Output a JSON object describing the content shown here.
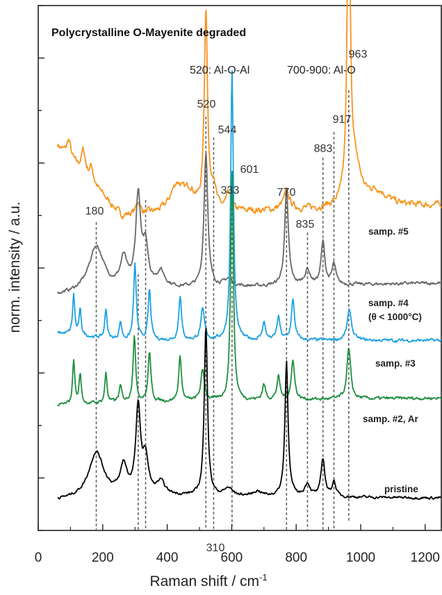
{
  "chart_data": {
    "type": "line",
    "title": "Polycrystalline O-Mayenite degraded",
    "xlabel": "Raman shift / cm",
    "xlabel_superscript": "-1",
    "ylabel": "norm. intensity / a.u.",
    "xlim": [
      0,
      1250
    ],
    "x_ticks": [
      0,
      200,
      400,
      600,
      800,
      1000,
      1200
    ],
    "y_tick_labels_shown": false,
    "grid": false,
    "legend": "inline labels at right",
    "annotations": [
      "520: Al-O-Al",
      "700-900: Al-O"
    ],
    "peak_markers": [
      {
        "x": 180,
        "label": "180"
      },
      {
        "x": 310,
        "label": "310"
      },
      {
        "x": 333,
        "label": "333"
      },
      {
        "x": 520,
        "label": "520"
      },
      {
        "x": 544,
        "label": "544"
      },
      {
        "x": 601,
        "label": "601"
      },
      {
        "x": 770,
        "label": "770"
      },
      {
        "x": 835,
        "label": "835"
      },
      {
        "x": 883,
        "label": "883"
      },
      {
        "x": 917,
        "label": "917"
      },
      {
        "x": 963,
        "label": "963"
      }
    ],
    "series": [
      {
        "name": "samp. #5",
        "color": "#f7941d",
        "baseline": 5.85,
        "end_level": 6.1,
        "noise": 0.1,
        "start_y": 7.3,
        "peaks": [
          [
            95,
            0.35,
            7
          ],
          [
            140,
            0.45,
            8
          ],
          [
            165,
            0.3,
            7
          ],
          [
            310,
            0.25,
            8
          ],
          [
            430,
            0.55,
            25
          ],
          [
            470,
            0.35,
            20
          ],
          [
            520,
            4.0,
            6
          ],
          [
            544,
            0.5,
            8
          ],
          [
            590,
            0.3,
            10
          ],
          [
            770,
            0.35,
            12
          ],
          [
            963,
            6.2,
            6
          ],
          [
            985,
            0.7,
            20
          ],
          [
            1050,
            0.3,
            40
          ]
        ]
      },
      {
        "name": "samp. #4",
        "label_line2": "(θ < 1000°C)",
        "color": "#666666",
        "baseline": 4.4,
        "end_level": 4.55,
        "noise": 0.05,
        "start_y": 4.3,
        "peaks": [
          [
            180,
            0.9,
            28
          ],
          [
            265,
            0.55,
            12
          ],
          [
            310,
            1.8,
            9
          ],
          [
            333,
            0.8,
            10
          ],
          [
            380,
            0.3,
            15
          ],
          [
            520,
            2.7,
            7
          ],
          [
            590,
            0.15,
            15
          ],
          [
            770,
            1.9,
            7
          ],
          [
            835,
            0.3,
            10
          ],
          [
            883,
            0.85,
            7
          ],
          [
            917,
            0.4,
            7
          ]
        ]
      },
      {
        "name": "samp. #3",
        "color": "#1ba1e2",
        "baseline": 3.4,
        "end_level": 3.4,
        "noise": 0.05,
        "start_y": 3.55,
        "peaks": [
          [
            110,
            0.8,
            4
          ],
          [
            130,
            0.5,
            4
          ],
          [
            210,
            0.6,
            4
          ],
          [
            255,
            0.35,
            5
          ],
          [
            300,
            1.5,
            5
          ],
          [
            345,
            1.0,
            5
          ],
          [
            440,
            0.9,
            5
          ],
          [
            510,
            0.6,
            7
          ],
          [
            601,
            5.4,
            5
          ],
          [
            700,
            0.35,
            6
          ],
          [
            745,
            0.45,
            6
          ],
          [
            790,
            0.8,
            6
          ],
          [
            965,
            0.6,
            8
          ]
        ]
      },
      {
        "name": "samp. #2, Ar",
        "color": "#1e8e3e",
        "baseline": 2.15,
        "end_level": 2.25,
        "noise": 0.05,
        "start_y": 2.1,
        "peaks": [
          [
            110,
            0.9,
            4
          ],
          [
            130,
            0.6,
            4
          ],
          [
            210,
            0.6,
            4
          ],
          [
            255,
            0.3,
            5
          ],
          [
            298,
            1.3,
            5
          ],
          [
            345,
            1.0,
            5
          ],
          [
            440,
            0.9,
            5
          ],
          [
            510,
            0.6,
            7
          ],
          [
            601,
            4.6,
            5
          ],
          [
            700,
            0.3,
            6
          ],
          [
            745,
            0.45,
            6
          ],
          [
            790,
            0.8,
            6
          ],
          [
            963,
            1.0,
            7
          ]
        ]
      },
      {
        "name": "pristine",
        "color": "#000000",
        "baseline": 0.3,
        "end_level": 0.25,
        "noise": 0.04,
        "start_y": 0.2,
        "peaks": [
          [
            180,
            0.9,
            28
          ],
          [
            265,
            0.55,
            12
          ],
          [
            310,
            1.7,
            9
          ],
          [
            333,
            0.7,
            10
          ],
          [
            380,
            0.25,
            15
          ],
          [
            520,
            3.4,
            6
          ],
          [
            590,
            0.15,
            15
          ],
          [
            680,
            0.1,
            15
          ],
          [
            770,
            2.7,
            6
          ],
          [
            835,
            0.25,
            10
          ],
          [
            883,
            0.75,
            7
          ],
          [
            917,
            0.3,
            7
          ]
        ]
      }
    ]
  }
}
